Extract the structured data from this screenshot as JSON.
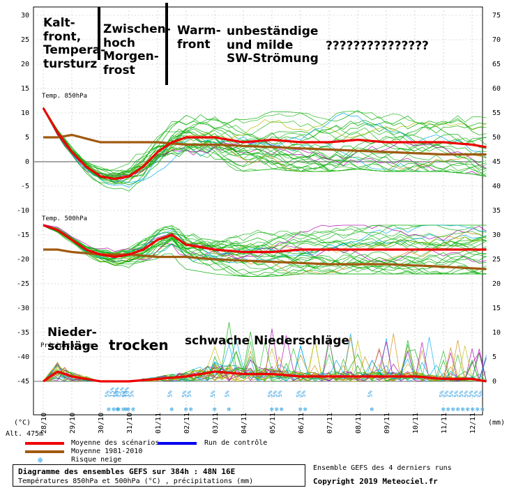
{
  "chart_data": {
    "type": "line",
    "title": "Diagramme des ensembles GEFS sur 384h : 48N 16E",
    "subtitle": "Températures 850hPa et 500hPa (°C) , précipitations (mm)",
    "left_axis_unit": "(°C)",
    "right_axis_unit": "(mm)",
    "left_ticks": [
      30,
      25,
      20,
      15,
      10,
      5,
      0,
      -5,
      -10,
      -15,
      -20,
      -25,
      -30,
      -35,
      -40,
      -45
    ],
    "right_ticks": [
      75,
      70,
      65,
      60,
      55,
      50,
      45,
      40,
      35,
      30,
      25,
      20,
      15,
      10,
      5,
      0
    ],
    "x_labels": [
      "28/10",
      "29/10",
      "30/10",
      "31/10",
      "01/11",
      "02/11",
      "03/11",
      "04/11",
      "05/11",
      "06/11",
      "07/11",
      "08/11",
      "09/11",
      "10/11",
      "11/11",
      "12/11"
    ],
    "panel_labels": [
      "Temp. 850hPa",
      "Temp. 500hPa",
      "Précipitations"
    ],
    "altitude": "Alt. 475m",
    "legend": {
      "mean": "Moyenne des scénarios",
      "control": "Run de contrôle",
      "climate": "Moyenne 1981-2010",
      "snow": "Risque neige",
      "right_note": "Ensemble GEFS des 4 derniers runs",
      "copyright": "Copyright 2019 Meteociel.fr"
    },
    "colors": {
      "mean": "#ee0000",
      "climate": "#a05a10",
      "control": "#0000ee",
      "members": [
        "#00aa00",
        "#22bb22",
        "#aa00aa",
        "#00aaee",
        "#bbbb00",
        "#cc8800"
      ],
      "snow": "#2a9de0"
    },
    "series": [
      {
        "name": "Moyenne des scénarios (850hPa)",
        "x": [
          0,
          0.5,
          1,
          1.5,
          2,
          2.5,
          3,
          3.5,
          4,
          4.5,
          5,
          6,
          7,
          8,
          9,
          10,
          11,
          12,
          13,
          14,
          15,
          15.5
        ],
        "values": [
          11,
          6,
          2,
          -1,
          -3,
          -3.5,
          -3,
          -1,
          2,
          4,
          5,
          5,
          4,
          4.5,
          4,
          4,
          4.5,
          4,
          4,
          4,
          3.5,
          3
        ]
      },
      {
        "name": "Moyenne 1981-2010 (850hPa)",
        "x": [
          0,
          0.5,
          1,
          2,
          3,
          4,
          5,
          6,
          8,
          10,
          12,
          14,
          15.5
        ],
        "values": [
          5,
          5,
          5.5,
          4,
          4,
          4,
          3.5,
          3.5,
          3,
          2.5,
          2,
          1.5,
          1.5
        ]
      },
      {
        "name": "Moyenne des scénarios (500hPa)",
        "x": [
          0,
          0.5,
          1,
          1.5,
          2,
          2.5,
          3,
          3.5,
          4,
          4.5,
          5,
          6,
          7,
          8,
          9,
          10,
          11,
          12,
          13,
          14,
          15,
          15.5
        ],
        "values": [
          -13,
          -14,
          -16,
          -18,
          -19,
          -19.5,
          -19,
          -18,
          -16,
          -15,
          -17,
          -18,
          -18.5,
          -18.5,
          -18,
          -18,
          -18,
          -18,
          -18,
          -18,
          -18,
          -18
        ]
      },
      {
        "name": "Moyenne 1981-2010 (500hPa)",
        "x": [
          0,
          0.5,
          1,
          2,
          3,
          4,
          5,
          6,
          8,
          10,
          12,
          14,
          15.5
        ],
        "values": [
          -18,
          -18,
          -18.5,
          -19,
          -19,
          -19.5,
          -19.5,
          -20,
          -20.5,
          -21,
          -21,
          -21.5,
          -22
        ]
      },
      {
        "name": "Moyenne des scénarios (précipitations, mm)",
        "x": [
          0,
          0.5,
          1,
          1.5,
          2,
          3,
          4,
          5,
          6,
          7,
          8,
          9,
          10,
          11,
          12,
          13,
          14,
          15,
          15.5
        ],
        "values": [
          0,
          2,
          1,
          0.5,
          0,
          0,
          0.5,
          1,
          2,
          1.5,
          1.5,
          1,
          1,
          1,
          1,
          1,
          0.5,
          0.5,
          0
        ]
      }
    ],
    "snow_risk": [
      {
        "x": 2.3,
        "percents": [
          "5%",
          "15%",
          "30%",
          "25%",
          "10%",
          "5%"
        ]
      },
      {
        "x": 2.6,
        "percents": [
          "5%"
        ]
      },
      {
        "x": 2.9,
        "percents": [
          "5%"
        ]
      },
      {
        "x": 4.5,
        "percents": [
          "5%"
        ]
      },
      {
        "x": 5.0,
        "percents": [
          "5%",
          "5%"
        ]
      },
      {
        "x": 6.0,
        "percents": [
          "5%"
        ]
      },
      {
        "x": 6.5,
        "percents": [
          "5%"
        ]
      },
      {
        "x": 8.0,
        "percents": [
          "5%",
          "5%",
          "5%"
        ]
      },
      {
        "x": 9.0,
        "percents": [
          "5%",
          "5%"
        ]
      },
      {
        "x": 11.5,
        "percents": [
          "5%"
        ]
      },
      {
        "x": 14.0,
        "percents": [
          "5%",
          "5%",
          "5%",
          "5%",
          "5%",
          "5%",
          "5%",
          "5%",
          "5%"
        ]
      }
    ]
  },
  "annotations": {
    "kaltfront": "Kalt-\nfront,\nTempera-\ntursturz",
    "zwischenhoch": "Zwischen-\nhoch\nMorgen-\nfrost",
    "warmfront": "Warm-\nfront",
    "unbestaendig": "unbeständige\nund milde\nSW-Strömung",
    "fragezeichen": "???????????????",
    "niederschlaege": "Nieder-\nschläge",
    "trocken": "trocken",
    "schwach": "schwache Niederschläge"
  }
}
